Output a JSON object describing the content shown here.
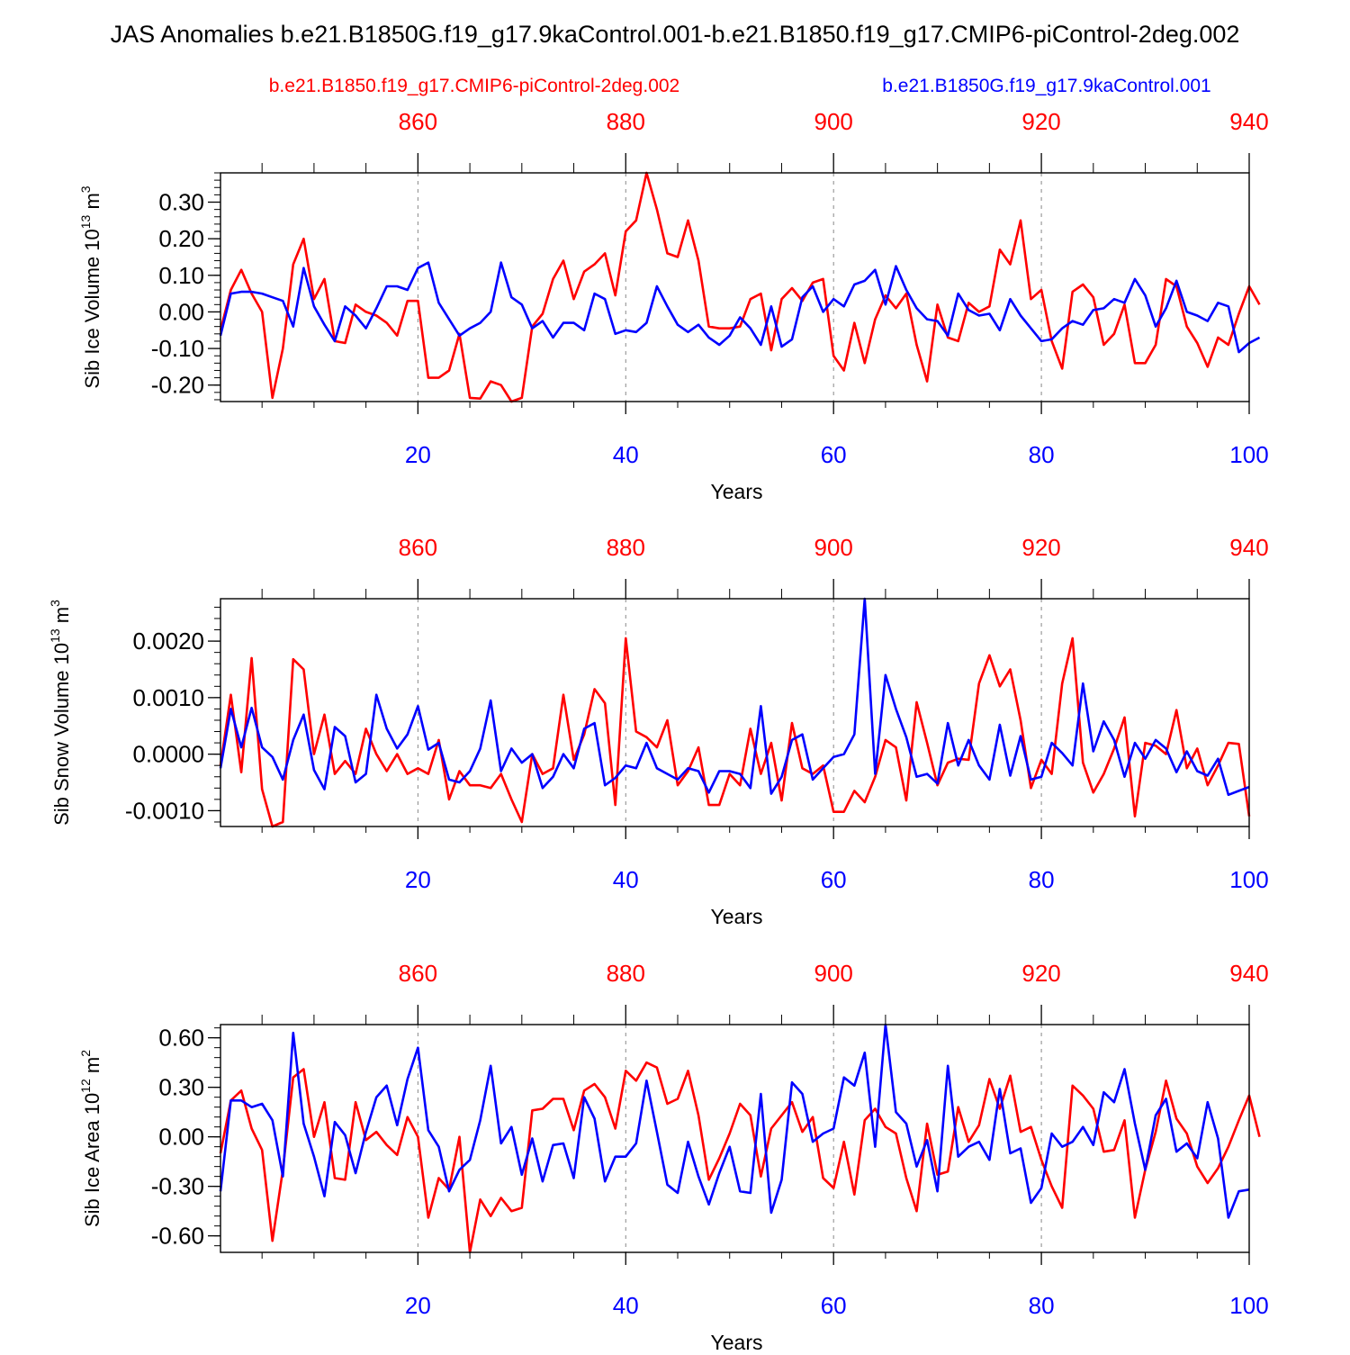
{
  "title": "JAS Anomalies b.e21.B1850G.f19_g17.9kaControl.001-b.e21.B1850.f19_g17.CMIP6-piControl-2deg.002",
  "legend": {
    "red_label": "b.e21.B1850.f19_g17.CMIP6-piControl-2deg.002",
    "blue_label": "b.e21.B1850G.f19_g17.9kaControl.001"
  },
  "colors": {
    "red": "#ff0000",
    "blue": "#0000ff",
    "axis": "#000000",
    "grid": "#888888"
  },
  "chart_data": [
    {
      "type": "line",
      "id": "sib-ice-volume",
      "ylabel": {
        "text": "Sib Ice Volume 10",
        "exp": "13",
        "unit": " m",
        "unit_exp": "3"
      },
      "xlabel": "Years",
      "xlim": [
        1,
        100
      ],
      "ylim": [
        -0.245,
        0.38
      ],
      "x_ticks": [
        20,
        40,
        60,
        80,
        100
      ],
      "x_tick_labels": [
        "20",
        "40",
        "60",
        "80",
        "100"
      ],
      "top_ticks": [
        860,
        880,
        900,
        920,
        940
      ],
      "top_tick_labels": [
        "860",
        "880",
        "900",
        "920",
        "940"
      ],
      "y_ticks": [
        -0.2,
        -0.1,
        0.0,
        0.1,
        0.2,
        0.3
      ],
      "y_tick_labels": [
        "-0.20",
        "-0.10",
        "0.00",
        "0.10",
        "0.20",
        "0.30"
      ],
      "grid_x": [
        20,
        40,
        60,
        80
      ],
      "series": [
        {
          "name": "b.e21.B1850.f19_g17.CMIP6-piControl-2deg.002",
          "color": "red",
          "values": [
            -0.05,
            0.06,
            0.115,
            0.05,
            0.0,
            -0.235,
            -0.1,
            0.13,
            0.2,
            0.035,
            0.09,
            -0.08,
            -0.085,
            0.02,
            0.0,
            -0.01,
            -0.03,
            -0.065,
            0.03,
            0.03,
            -0.18,
            -0.18,
            -0.16,
            -0.06,
            -0.235,
            -0.237,
            -0.19,
            -0.2,
            -0.245,
            -0.235,
            -0.04,
            -0.005,
            0.09,
            0.14,
            0.035,
            0.11,
            0.13,
            0.16,
            0.045,
            0.22,
            0.25,
            0.38,
            0.28,
            0.16,
            0.15,
            0.25,
            0.14,
            -0.04,
            -0.045,
            -0.045,
            -0.04,
            0.035,
            0.05,
            -0.105,
            0.035,
            0.065,
            0.03,
            0.08,
            0.09,
            -0.12,
            -0.16,
            -0.03,
            -0.14,
            -0.02,
            0.045,
            0.01,
            0.05,
            -0.09,
            -0.19,
            0.02,
            -0.07,
            -0.08,
            0.025,
            0.0,
            0.015,
            0.17,
            0.13,
            0.25,
            0.035,
            0.06,
            -0.08,
            -0.155,
            0.055,
            0.075,
            0.04,
            -0.09,
            -0.06,
            0.02,
            -0.14,
            -0.14,
            -0.09,
            0.09,
            0.07,
            -0.04,
            -0.085,
            -0.15,
            -0.07,
            -0.09,
            -0.005,
            0.07,
            0.02
          ]
        },
        {
          "name": "b.e21.B1850G.f19_g17.9kaControl.001",
          "color": "blue",
          "values": [
            -0.065,
            0.05,
            0.055,
            0.055,
            0.05,
            0.04,
            0.03,
            -0.04,
            0.12,
            0.015,
            -0.035,
            -0.08,
            0.015,
            -0.01,
            -0.045,
            0.01,
            0.07,
            0.07,
            0.06,
            0.12,
            0.135,
            0.025,
            -0.02,
            -0.065,
            -0.045,
            -0.03,
            0.0,
            0.135,
            0.04,
            0.02,
            -0.045,
            -0.025,
            -0.07,
            -0.03,
            -0.03,
            -0.05,
            0.05,
            0.035,
            -0.06,
            -0.05,
            -0.055,
            -0.03,
            0.07,
            0.015,
            -0.035,
            -0.055,
            -0.035,
            -0.07,
            -0.09,
            -0.065,
            -0.015,
            -0.045,
            -0.09,
            0.015,
            -0.095,
            -0.075,
            0.04,
            0.07,
            0.0,
            0.035,
            0.015,
            0.075,
            0.085,
            0.115,
            0.02,
            0.125,
            0.06,
            0.01,
            -0.02,
            -0.025,
            -0.065,
            0.05,
            0.005,
            -0.01,
            -0.005,
            -0.05,
            0.035,
            -0.01,
            -0.045,
            -0.08,
            -0.075,
            -0.045,
            -0.025,
            -0.035,
            0.005,
            0.01,
            0.035,
            0.025,
            0.09,
            0.045,
            -0.04,
            0.01,
            0.085,
            0.0,
            -0.01,
            -0.025,
            0.025,
            0.015,
            -0.11,
            -0.085,
            -0.07
          ]
        }
      ]
    },
    {
      "type": "line",
      "id": "sib-snow-volume",
      "ylabel": {
        "text": "Sib Snow Volume 10",
        "exp": "13",
        "unit": " m",
        "unit_exp": "3"
      },
      "xlabel": "Years",
      "xlim": [
        1,
        100
      ],
      "ylim": [
        -0.00128,
        0.00275
      ],
      "x_ticks": [
        20,
        40,
        60,
        80,
        100
      ],
      "x_tick_labels": [
        "20",
        "40",
        "60",
        "80",
        "100"
      ],
      "top_ticks": [
        860,
        880,
        900,
        920,
        940
      ],
      "top_tick_labels": [
        "860",
        "880",
        "900",
        "920",
        "940"
      ],
      "y_ticks": [
        -0.001,
        0.0,
        0.001,
        0.002
      ],
      "y_tick_labels": [
        "-0.0010",
        "0.0000",
        "0.0010",
        "0.0020"
      ],
      "grid_x": [
        20,
        40,
        60,
        80
      ],
      "series": [
        {
          "name": "b.e21.B1850.f19_g17.CMIP6-piControl-2deg.002",
          "color": "red",
          "values": [
            -0.0002,
            0.00105,
            -0.00032,
            0.0017,
            -0.00062,
            -0.00128,
            -0.0012,
            0.00168,
            0.0015,
            0.0,
            0.0007,
            -0.00035,
            -0.00012,
            -0.00035,
            0.00045,
            0.0,
            -0.0003,
            0.0,
            -0.00035,
            -0.00025,
            -0.00035,
            0.00025,
            -0.0008,
            -0.0003,
            -0.00055,
            -0.00055,
            -0.0006,
            -0.00035,
            -0.0008,
            -0.0012,
            0.0,
            -0.00035,
            -0.00025,
            0.00105,
            -0.0001,
            0.00035,
            0.00115,
            0.0009,
            -0.0009,
            0.00205,
            0.0004,
            0.0003,
            0.00012,
            0.0006,
            -0.00055,
            -0.0003,
            0.00012,
            -0.0009,
            -0.0009,
            -0.00035,
            -0.00055,
            0.00045,
            -0.00035,
            0.0002,
            -0.00082,
            0.00055,
            -0.00025,
            -0.00035,
            -0.0002,
            -0.00102,
            -0.00102,
            -0.00065,
            -0.00085,
            -0.0004,
            0.00025,
            0.00012,
            -0.00082,
            0.00092,
            0.0002,
            -0.00055,
            -0.00015,
            -8e-05,
            -0.0001,
            0.00125,
            0.00175,
            0.0012,
            0.0015,
            0.0006,
            -0.0006,
            -0.0001,
            -0.00035,
            0.00125,
            0.00205,
            -0.00015,
            -0.00068,
            -0.00035,
            0.0001,
            0.00065,
            -0.0011,
            0.0002,
            0.00015,
            0.0,
            0.00078,
            -0.00025,
            0.0001,
            -0.00055,
            -0.0002,
            0.0002,
            0.00018,
            -0.0011
          ]
        },
        {
          "name": "b.e21.B1850G.f19_g17.9kaControl.001",
          "color": "blue",
          "values": [
            -0.00025,
            0.0008,
            0.00012,
            0.00082,
            0.00012,
            -5e-05,
            -0.00045,
            0.00025,
            0.0007,
            -0.00028,
            -0.00062,
            0.00048,
            0.00032,
            -0.0005,
            -0.00035,
            0.00105,
            0.00045,
            0.0001,
            0.00035,
            0.00085,
            8e-05,
            0.0002,
            -0.00045,
            -0.0005,
            -0.0003,
            0.0001,
            0.00095,
            -0.0003,
            0.0001,
            -0.00015,
            0.0,
            -0.0006,
            -0.0004,
            0.0,
            -0.00025,
            0.00045,
            0.00055,
            -0.00055,
            -0.00042,
            -0.0002,
            -0.00025,
            0.0002,
            -0.00025,
            -0.00035,
            -0.00045,
            -0.00025,
            -0.0003,
            -0.00068,
            -0.0003,
            -0.0003,
            -0.00035,
            -0.0006,
            0.00085,
            -0.0007,
            -0.0004,
            0.00025,
            0.00035,
            -0.00045,
            -0.00025,
            -5e-05,
            0.0,
            0.00035,
            0.00275,
            -0.00035,
            0.0014,
            0.0008,
            0.0003,
            -0.0004,
            -0.00035,
            -0.00052,
            0.00055,
            -0.0002,
            0.00025,
            -0.0002,
            -0.00045,
            0.00052,
            -0.00038,
            0.00032,
            -0.00045,
            -0.0004,
            0.0002,
            2e-05,
            -0.0002,
            0.00125,
            5e-05,
            0.00058,
            0.00025,
            -0.0004,
            0.0002,
            -8e-05,
            0.00025,
            0.0001,
            -0.00032,
            5e-05,
            -0.0003,
            -0.00038,
            -8e-05,
            -0.00072,
            -0.00065,
            -0.00058
          ]
        }
      ]
    },
    {
      "type": "line",
      "id": "sib-ice-area",
      "ylabel": {
        "text": "Sib Ice Area 10",
        "exp": "12",
        "unit": " m",
        "unit_exp": "2"
      },
      "xlabel": "Years",
      "xlim": [
        1,
        100
      ],
      "ylim": [
        -0.7,
        0.68
      ],
      "x_ticks": [
        20,
        40,
        60,
        80,
        100
      ],
      "x_tick_labels": [
        "20",
        "40",
        "60",
        "80",
        "100"
      ],
      "top_ticks": [
        860,
        880,
        900,
        920,
        940
      ],
      "top_tick_labels": [
        "860",
        "880",
        "900",
        "920",
        "940"
      ],
      "y_ticks": [
        -0.6,
        -0.3,
        0.0,
        0.3,
        0.6
      ],
      "y_tick_labels": [
        "-0.60",
        "-0.30",
        "0.00",
        "0.30",
        "0.60"
      ],
      "grid_x": [
        20,
        40,
        60,
        80
      ],
      "series": [
        {
          "name": "b.e21.B1850.f19_g17.CMIP6-piControl-2deg.002",
          "color": "red",
          "values": [
            -0.1,
            0.22,
            0.28,
            0.05,
            -0.08,
            -0.63,
            -0.2,
            0.36,
            0.41,
            0.0,
            0.21,
            -0.25,
            -0.26,
            0.21,
            -0.02,
            0.03,
            -0.05,
            -0.11,
            0.12,
            0.0,
            -0.49,
            -0.25,
            -0.32,
            0.0,
            -0.7,
            -0.38,
            -0.48,
            -0.37,
            -0.45,
            -0.43,
            0.16,
            0.17,
            0.23,
            0.23,
            0.04,
            0.28,
            0.32,
            0.24,
            0.05,
            0.4,
            0.34,
            0.45,
            0.42,
            0.2,
            0.23,
            0.4,
            0.13,
            -0.26,
            -0.13,
            0.02,
            0.2,
            0.13,
            -0.24,
            0.05,
            0.13,
            0.21,
            0.03,
            0.12,
            -0.25,
            -0.31,
            -0.03,
            -0.35,
            0.1,
            0.17,
            0.06,
            0.02,
            -0.25,
            -0.45,
            0.08,
            -0.23,
            -0.21,
            0.18,
            -0.03,
            0.07,
            0.35,
            0.17,
            0.37,
            0.03,
            0.06,
            -0.14,
            -0.3,
            -0.43,
            0.31,
            0.25,
            0.17,
            -0.09,
            -0.08,
            0.1,
            -0.49,
            -0.2,
            0.03,
            0.34,
            0.11,
            0.02,
            -0.18,
            -0.28,
            -0.19,
            -0.06,
            0.1,
            0.25,
            0.0
          ]
        },
        {
          "name": "b.e21.B1850G.f19_g17.9kaControl.001",
          "color": "blue",
          "values": [
            -0.33,
            0.22,
            0.22,
            0.18,
            0.2,
            0.1,
            -0.24,
            0.63,
            0.08,
            -0.12,
            -0.36,
            0.09,
            0.01,
            -0.22,
            0.03,
            0.24,
            0.31,
            0.07,
            0.35,
            0.54,
            0.04,
            -0.06,
            -0.33,
            -0.2,
            -0.14,
            0.1,
            0.43,
            -0.04,
            0.06,
            -0.23,
            -0.01,
            -0.27,
            -0.05,
            -0.04,
            -0.25,
            0.24,
            0.11,
            -0.27,
            -0.12,
            -0.12,
            -0.04,
            0.34,
            0.03,
            -0.29,
            -0.34,
            -0.03,
            -0.24,
            -0.41,
            -0.22,
            -0.06,
            -0.33,
            -0.34,
            0.26,
            -0.46,
            -0.26,
            0.33,
            0.26,
            -0.03,
            0.02,
            0.05,
            0.36,
            0.31,
            0.51,
            -0.06,
            0.68,
            0.15,
            0.08,
            -0.18,
            -0.02,
            -0.33,
            0.43,
            -0.12,
            -0.06,
            -0.03,
            -0.14,
            0.29,
            -0.1,
            -0.07,
            -0.4,
            -0.31,
            0.02,
            -0.06,
            -0.03,
            0.06,
            -0.05,
            0.27,
            0.21,
            0.41,
            0.08,
            -0.2,
            0.13,
            0.23,
            -0.09,
            -0.04,
            -0.13,
            0.21,
            -0.01,
            -0.49,
            -0.33,
            -0.32
          ]
        }
      ]
    }
  ]
}
